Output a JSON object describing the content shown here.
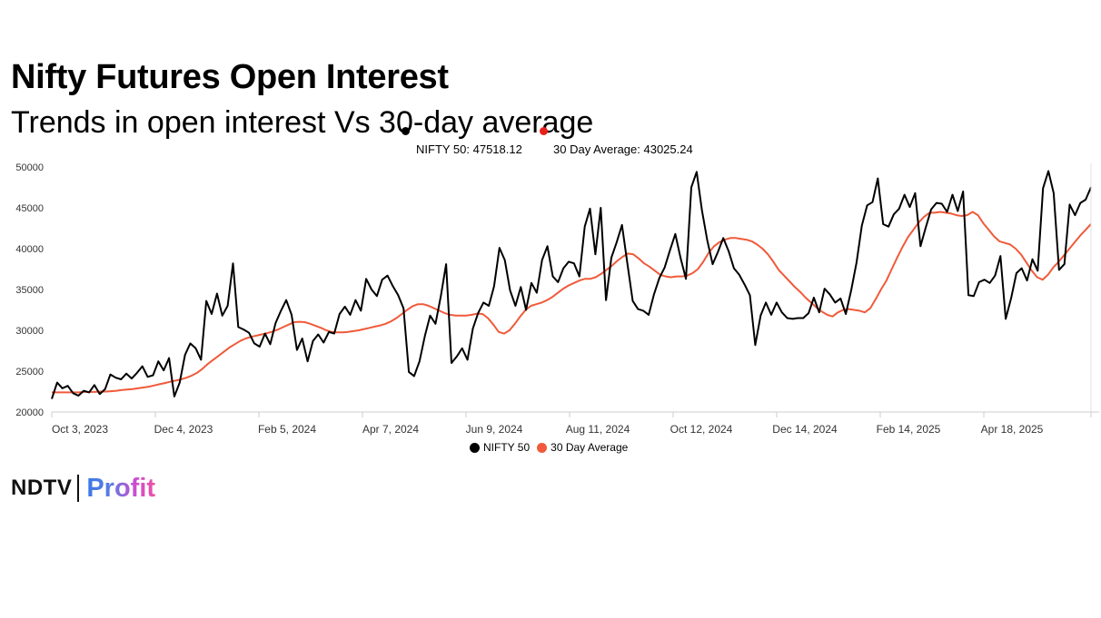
{
  "header": {
    "title": "Nifty Futures Open Interest",
    "subtitle": "Trends in open interest Vs 30-day average"
  },
  "tooltip": {
    "series1_label": "NIFTY 50: 47518.12",
    "series2_label": "30 Day Average: 43025.24"
  },
  "branding": {
    "ndtv": "NDTV",
    "profit": "Profit"
  },
  "colors": {
    "nifty": "#000000",
    "avg": "#f05a3a",
    "tooltip_dot": "#e8201c"
  },
  "chart_data": {
    "type": "line",
    "title": "Nifty Futures Open Interest",
    "subtitle": "Trends in open interest Vs 30-day average",
    "xlabel": "",
    "ylabel": "",
    "ylim": [
      20000,
      50000
    ],
    "yticks": [
      20000,
      25000,
      30000,
      35000,
      40000,
      45000,
      50000
    ],
    "x_tick_labels": [
      "Oct 3, 2023",
      "Dec 4, 2023",
      "Feb 5, 2024",
      "Apr 7, 2024",
      "Jun 9, 2024",
      "Aug 11, 2024",
      "Oct 12, 2024",
      "Dec 14, 2024",
      "Feb 14, 2025",
      "Apr 18, 2025"
    ],
    "legend_position": "bottom",
    "grid": false,
    "series": [
      {
        "name": "NIFTY 50",
        "color": "#000000",
        "values": [
          21600,
          23600,
          22900,
          23200,
          22300,
          22000,
          22600,
          22400,
          23300,
          22200,
          22800,
          24600,
          24200,
          24000,
          24700,
          24100,
          24800,
          25600,
          24300,
          24500,
          26200,
          25100,
          26600,
          21900,
          23600,
          27000,
          28400,
          27800,
          26400,
          33600,
          32000,
          34500,
          31800,
          33000,
          38200,
          30400,
          30100,
          29700,
          28400,
          28000,
          29600,
          28300,
          30900,
          32400,
          33700,
          31900,
          27600,
          29000,
          26200,
          28700,
          29500,
          28500,
          29800,
          29600,
          32000,
          32900,
          31900,
          33700,
          32400,
          36300,
          35000,
          34200,
          36200,
          36700,
          35400,
          34300,
          32700,
          24900,
          24400,
          26200,
          29300,
          31800,
          30800,
          34200,
          38100,
          26000,
          26800,
          27800,
          26400,
          30200,
          32100,
          33400,
          33000,
          35400,
          40100,
          38600,
          34900,
          33000,
          35300,
          32500,
          35800,
          34600,
          38600,
          40300,
          36600,
          35900,
          37600,
          38400,
          38200,
          36600,
          42700,
          44900,
          39300,
          45000,
          33700,
          38900,
          40800,
          42900,
          38200,
          33600,
          32600,
          32400,
          31900,
          34400,
          36400,
          37700,
          39800,
          41800,
          38800,
          36300,
          47500,
          49400,
          44700,
          41000,
          38100,
          39600,
          41300,
          39700,
          37600,
          36800,
          35600,
          34300,
          28200,
          31800,
          33400,
          31900,
          33400,
          32200,
          31500,
          31400,
          31500,
          31500,
          32100,
          34000,
          32200,
          35100,
          34400,
          33400,
          33900,
          32000,
          34900,
          38300,
          42800,
          45300,
          45700,
          48600,
          43000,
          42700,
          44200,
          44900,
          46600,
          45100,
          46800,
          40300,
          42600,
          44800,
          45600,
          45500,
          44500,
          46600,
          44600,
          47000,
          34300,
          34200,
          35900,
          36200,
          35800,
          36700,
          39100,
          31400,
          33900,
          37000,
          37600,
          36100,
          38700,
          37300,
          47400,
          49500,
          46800,
          37400,
          38100,
          45400,
          44100,
          45600,
          46000,
          47518
        ]
      },
      {
        "name": "30 Day Average",
        "color": "#f05a3a",
        "values": [
          22400,
          22400,
          22400,
          22400,
          22400,
          22400,
          22450,
          22450,
          22450,
          22500,
          22500,
          22550,
          22600,
          22700,
          22750,
          22800,
          22900,
          23000,
          23100,
          23250,
          23400,
          23550,
          23700,
          23850,
          24000,
          24200,
          24450,
          24800,
          25300,
          25900,
          26400,
          26900,
          27400,
          27900,
          28300,
          28700,
          29000,
          29200,
          29350,
          29500,
          29650,
          29850,
          30100,
          30400,
          30700,
          31000,
          31050,
          31000,
          30800,
          30550,
          30300,
          30000,
          29800,
          29750,
          29750,
          29800,
          29900,
          30000,
          30150,
          30300,
          30450,
          30600,
          30800,
          31100,
          31500,
          32000,
          32500,
          32950,
          33200,
          33200,
          33000,
          32700,
          32400,
          32100,
          31900,
          31800,
          31800,
          31800,
          31900,
          32050,
          32000,
          31500,
          30700,
          29800,
          29600,
          30000,
          30800,
          31700,
          32500,
          33000,
          33200,
          33400,
          33700,
          34100,
          34600,
          35100,
          35500,
          35800,
          36100,
          36300,
          36300,
          36500,
          36900,
          37400,
          37900,
          38500,
          39000,
          39400,
          39300,
          38800,
          38200,
          37800,
          37300,
          36800,
          36600,
          36500,
          36600,
          36600,
          36700,
          37000,
          37500,
          38400,
          39500,
          40300,
          40800,
          41100,
          41300,
          41300,
          41200,
          41100,
          40900,
          40500,
          40000,
          39300,
          38400,
          37400,
          36700,
          36000,
          35300,
          34700,
          34000,
          33400,
          32800,
          32300,
          31900,
          31700,
          32200,
          32500,
          32600,
          32500,
          32400,
          32200,
          32700,
          33800,
          35000,
          36100,
          37500,
          38900,
          40200,
          41400,
          42300,
          43200,
          43900,
          44400,
          44400,
          44500,
          44400,
          44300,
          44100,
          44000,
          44100,
          44500,
          44100,
          43100,
          42300,
          41500,
          40900,
          40700,
          40500,
          40000,
          39300,
          38300,
          37300,
          36500,
          36200,
          36800,
          37700,
          38400,
          39200,
          40000,
          40800,
          41600,
          42300,
          43025
        ]
      }
    ]
  }
}
